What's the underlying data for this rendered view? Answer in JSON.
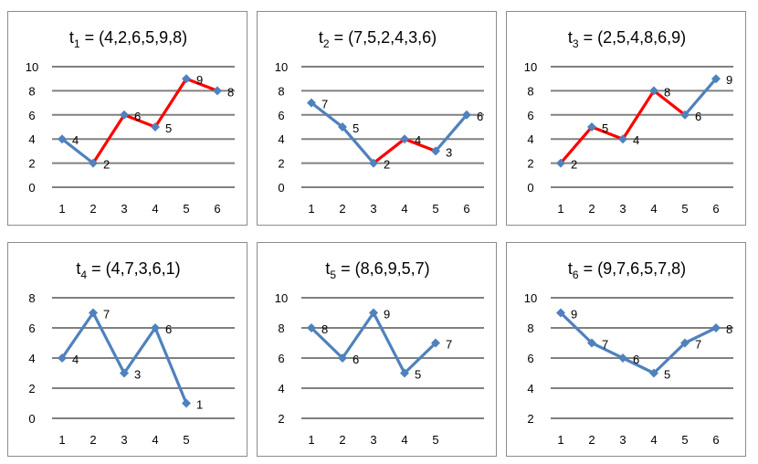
{
  "colors": {
    "series": "#4f81bd",
    "highlight": "#ff0000",
    "grid": "#808080",
    "frame": "#8c8c8c"
  },
  "chart_data": [
    {
      "type": "line",
      "title_base": "t",
      "title_sub": "1",
      "title_rest": " = (4,2,6,5,9,8)",
      "categories": [
        "1",
        "2",
        "3",
        "4",
        "5",
        "6"
      ],
      "values": [
        4,
        2,
        6,
        5,
        9,
        8
      ],
      "ylim": [
        0,
        10
      ],
      "yticks": [
        "0",
        "2",
        "4",
        "6",
        "8",
        "10"
      ],
      "highlight_from": 1,
      "grid": true,
      "legend": "none"
    },
    {
      "type": "line",
      "title_base": "t",
      "title_sub": "2",
      "title_rest": " = (7,5,2,4,3,6)",
      "categories": [
        "1",
        "2",
        "3",
        "4",
        "5",
        "6"
      ],
      "values": [
        7,
        5,
        2,
        4,
        3,
        6
      ],
      "ylim": [
        0,
        10
      ],
      "yticks": [
        "0",
        "2",
        "4",
        "6",
        "8",
        "10"
      ],
      "highlight_from": 2,
      "highlight_to": 4,
      "grid": true,
      "legend": "none"
    },
    {
      "type": "line",
      "title_base": "t",
      "title_sub": "3",
      "title_rest": " = (2,5,4,8,6,9)",
      "categories": [
        "1",
        "2",
        "3",
        "4",
        "5",
        "6"
      ],
      "values": [
        2,
        5,
        4,
        8,
        6,
        9
      ],
      "ylim": [
        0,
        10
      ],
      "yticks": [
        "0",
        "2",
        "4",
        "6",
        "8",
        "10"
      ],
      "highlight_from": 0,
      "highlight_to": 4,
      "grid": true,
      "legend": "none"
    },
    {
      "type": "line",
      "title_base": "t",
      "title_sub": "4",
      "title_rest": " = (4,7,3,6,1)",
      "categories": [
        "1",
        "2",
        "3",
        "4",
        "5"
      ],
      "values": [
        4,
        7,
        3,
        6,
        1
      ],
      "ylim": [
        0,
        8
      ],
      "yticks": [
        "0",
        "2",
        "4",
        "6",
        "8"
      ],
      "grid": true,
      "legend": "none"
    },
    {
      "type": "line",
      "title_base": "t",
      "title_sub": "5",
      "title_rest": " = (8,6,9,5,7)",
      "categories": [
        "1",
        "2",
        "3",
        "4",
        "5"
      ],
      "values": [
        8,
        6,
        9,
        5,
        7
      ],
      "ylim": [
        2,
        10
      ],
      "yticks": [
        "2",
        "4",
        "6",
        "8",
        "10"
      ],
      "grid": true,
      "legend": "none"
    },
    {
      "type": "line",
      "title_base": "t",
      "title_sub": "6",
      "title_rest": " = (9,7,6,5,7,8)",
      "categories": [
        "1",
        "2",
        "3",
        "4",
        "5",
        "6"
      ],
      "values": [
        9,
        7,
        6,
        5,
        7,
        8
      ],
      "ylim": [
        2,
        10
      ],
      "yticks": [
        "2",
        "4",
        "6",
        "8",
        "10"
      ],
      "grid": true,
      "legend": "none"
    }
  ]
}
